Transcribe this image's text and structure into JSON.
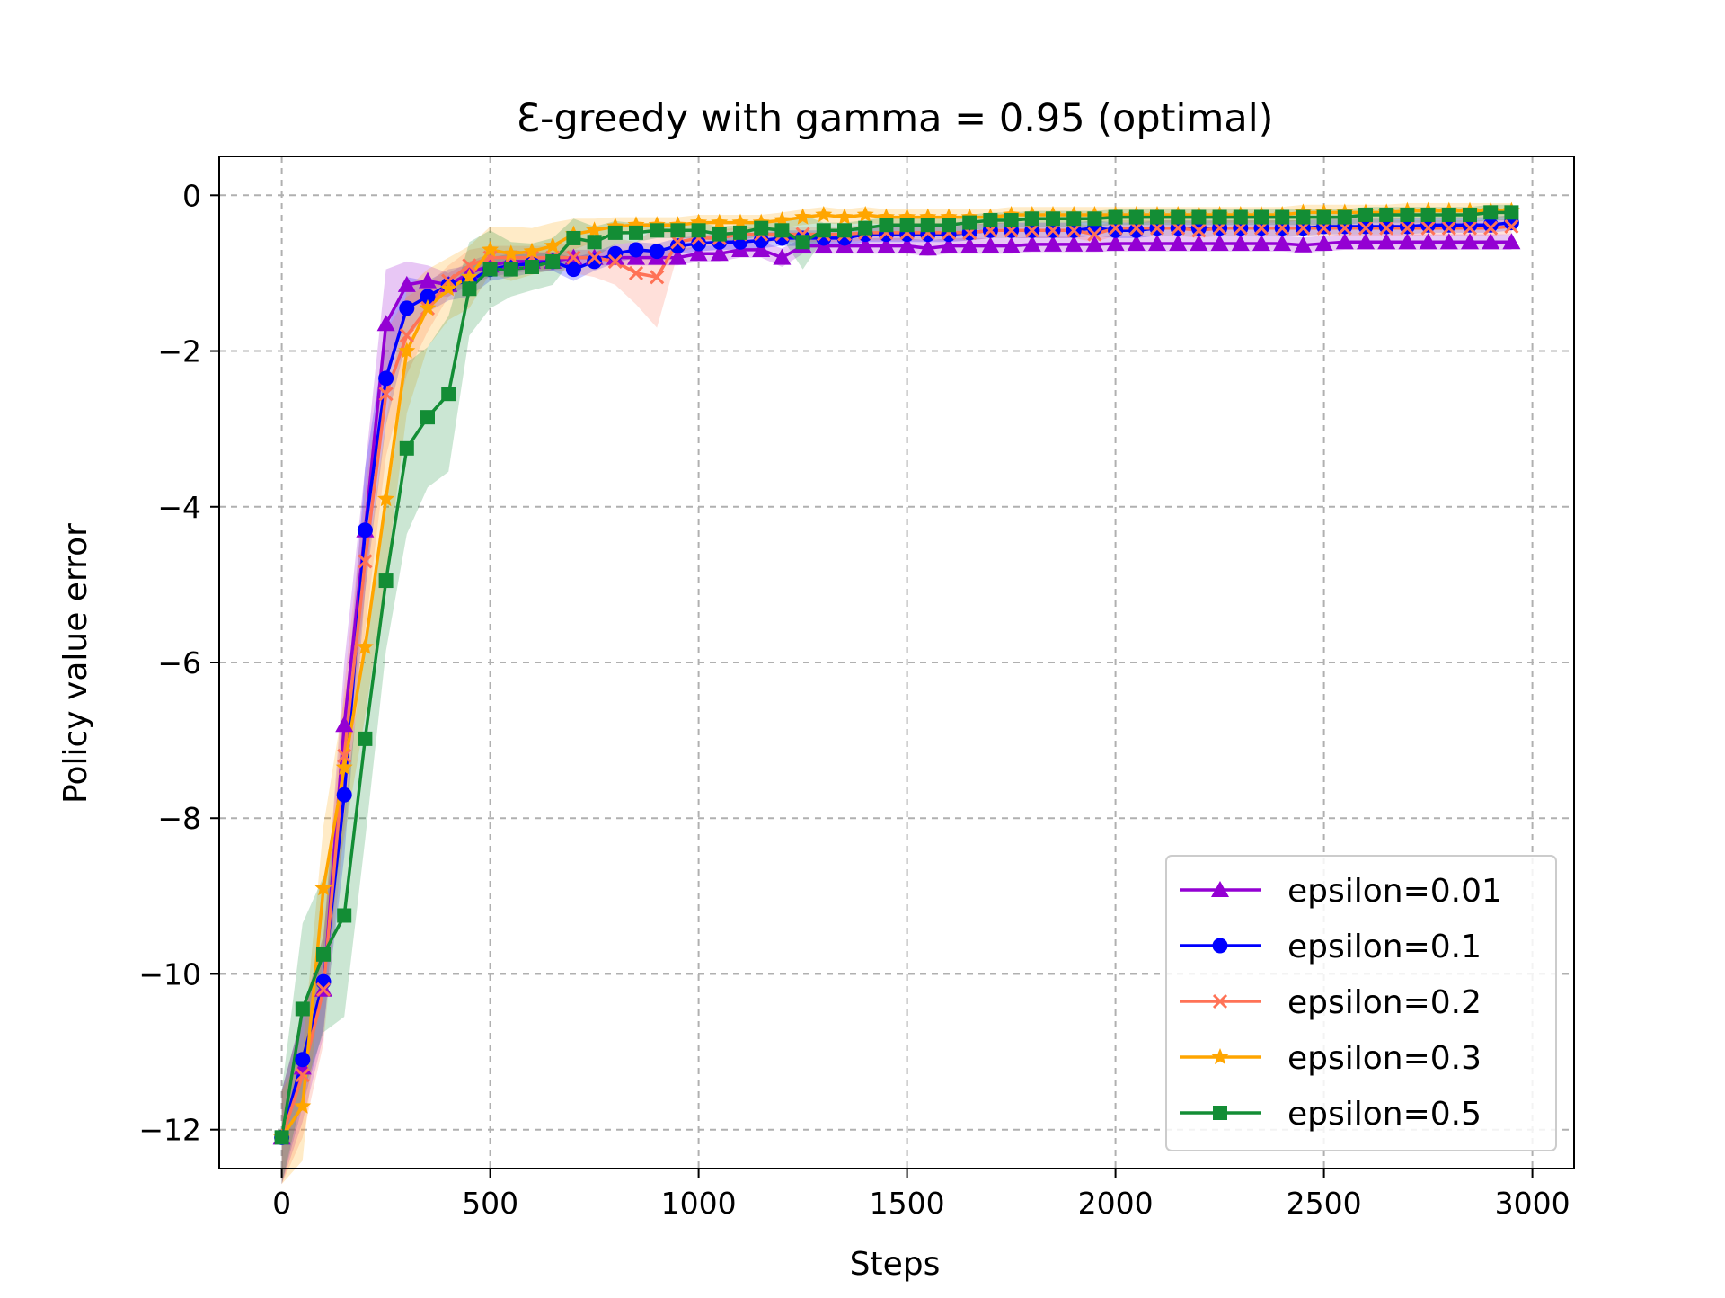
{
  "chart_data": {
    "type": "line",
    "title": "Ɛ-greedy with gamma = 0.95 (optimal)",
    "xlabel": "Steps",
    "ylabel": "Policy value error",
    "xlim": [
      -150,
      3100
    ],
    "ylim": [
      -12.5,
      0.5
    ],
    "xticks": [
      0,
      500,
      1000,
      1500,
      2000,
      2500,
      3000
    ],
    "xtick_labels": [
      "0",
      "500",
      "1000",
      "1500",
      "2000",
      "2500",
      "3000"
    ],
    "yticks": [
      0,
      -2,
      -4,
      -6,
      -8,
      -10,
      -12
    ],
    "ytick_labels": [
      "0",
      "−2",
      "−4",
      "−6",
      "−8",
      "−10",
      "−12"
    ],
    "grid": true,
    "legend_position": "lower-right",
    "shaded_band": "variability band around each series",
    "x": [
      0,
      50,
      100,
      150,
      200,
      250,
      300,
      350,
      400,
      450,
      500,
      550,
      600,
      650,
      700,
      750,
      800,
      850,
      900,
      950,
      1000,
      1050,
      1100,
      1150,
      1200,
      1250,
      1300,
      1350,
      1400,
      1450,
      1500,
      1550,
      1600,
      1650,
      1700,
      1750,
      1800,
      1850,
      1900,
      1950,
      2000,
      2050,
      2100,
      2150,
      2200,
      2250,
      2300,
      2350,
      2400,
      2450,
      2500,
      2550,
      2600,
      2650,
      2700,
      2750,
      2800,
      2850,
      2900,
      2950
    ],
    "series": [
      {
        "name": "epsilon=0.01",
        "color": "#9400D3",
        "marker": "triangle",
        "values": [
          -12.1,
          -11.2,
          -10.2,
          -6.8,
          -4.3,
          -1.65,
          -1.15,
          -1.1,
          -1.15,
          -1.0,
          -0.9,
          -0.85,
          -0.85,
          -0.85,
          -0.8,
          -0.8,
          -0.8,
          -0.8,
          -0.8,
          -0.8,
          -0.75,
          -0.75,
          -0.7,
          -0.7,
          -0.8,
          -0.65,
          -0.65,
          -0.65,
          -0.65,
          -0.65,
          -0.65,
          -0.68,
          -0.65,
          -0.65,
          -0.65,
          -0.65,
          -0.63,
          -0.63,
          -0.63,
          -0.63,
          -0.62,
          -0.62,
          -0.62,
          -0.62,
          -0.62,
          -0.62,
          -0.62,
          -0.62,
          -0.62,
          -0.64,
          -0.62,
          -0.6,
          -0.6,
          -0.6,
          -0.6,
          -0.6,
          -0.6,
          -0.6,
          -0.6,
          -0.6
        ],
        "band": [
          0.6,
          0.7,
          0.6,
          0.8,
          0.8,
          0.7,
          0.3,
          0.2,
          0.15,
          0.15,
          0.15,
          0.15,
          0.12,
          0.12,
          0.1,
          0.1,
          0.1,
          0.1,
          0.1,
          0.1,
          0.1,
          0.1,
          0.1,
          0.1,
          0.12,
          0.1,
          0.1,
          0.1,
          0.1,
          0.1,
          0.1,
          0.1,
          0.1,
          0.1,
          0.1,
          0.1,
          0.1,
          0.1,
          0.1,
          0.1,
          0.1,
          0.1,
          0.1,
          0.1,
          0.1,
          0.1,
          0.1,
          0.1,
          0.1,
          0.1,
          0.1,
          0.1,
          0.1,
          0.1,
          0.1,
          0.1,
          0.1,
          0.1,
          0.1,
          0.1
        ]
      },
      {
        "name": "epsilon=0.1",
        "color": "#0000FF",
        "marker": "circle",
        "values": [
          -12.1,
          -11.1,
          -10.1,
          -7.7,
          -4.3,
          -2.35,
          -1.45,
          -1.3,
          -1.15,
          -1.1,
          -0.95,
          -0.9,
          -0.88,
          -0.85,
          -0.95,
          -0.85,
          -0.75,
          -0.7,
          -0.72,
          -0.65,
          -0.62,
          -0.6,
          -0.6,
          -0.58,
          -0.55,
          -0.55,
          -0.55,
          -0.55,
          -0.5,
          -0.5,
          -0.5,
          -0.5,
          -0.5,
          -0.48,
          -0.45,
          -0.45,
          -0.45,
          -0.45,
          -0.45,
          -0.42,
          -0.45,
          -0.45,
          -0.42,
          -0.42,
          -0.42,
          -0.42,
          -0.42,
          -0.42,
          -0.42,
          -0.42,
          -0.4,
          -0.4,
          -0.4,
          -0.4,
          -0.4,
          -0.38,
          -0.38,
          -0.38,
          -0.38,
          -0.35
        ],
        "band": [
          0.6,
          0.6,
          0.6,
          0.8,
          0.8,
          0.6,
          0.4,
          0.2,
          0.2,
          0.2,
          0.15,
          0.15,
          0.12,
          0.12,
          0.15,
          0.12,
          0.12,
          0.1,
          0.1,
          0.1,
          0.1,
          0.1,
          0.1,
          0.1,
          0.1,
          0.1,
          0.1,
          0.1,
          0.1,
          0.1,
          0.1,
          0.1,
          0.1,
          0.1,
          0.1,
          0.1,
          0.1,
          0.1,
          0.1,
          0.1,
          0.1,
          0.1,
          0.1,
          0.1,
          0.1,
          0.1,
          0.1,
          0.1,
          0.1,
          0.1,
          0.1,
          0.1,
          0.1,
          0.1,
          0.1,
          0.1,
          0.1,
          0.1,
          0.1,
          0.1
        ]
      },
      {
        "name": "epsilon=0.2",
        "color": "#FF7256",
        "marker": "x",
        "values": [
          -12.1,
          -11.3,
          -10.2,
          -7.2,
          -4.7,
          -2.55,
          -1.8,
          -1.45,
          -1.1,
          -0.9,
          -0.8,
          -0.8,
          -0.8,
          -0.8,
          -0.8,
          -0.8,
          -0.85,
          -1.0,
          -1.05,
          -0.6,
          -0.55,
          -0.55,
          -0.5,
          -0.5,
          -0.5,
          -0.5,
          -0.5,
          -0.5,
          -0.48,
          -0.48,
          -0.48,
          -0.48,
          -0.48,
          -0.48,
          -0.45,
          -0.45,
          -0.45,
          -0.45,
          -0.45,
          -0.5,
          -0.42,
          -0.42,
          -0.42,
          -0.42,
          -0.45,
          -0.42,
          -0.42,
          -0.42,
          -0.42,
          -0.42,
          -0.42,
          -0.42,
          -0.42,
          -0.42,
          -0.42,
          -0.42,
          -0.42,
          -0.42,
          -0.42,
          -0.4
        ],
        "band": [
          0.6,
          0.8,
          0.7,
          0.9,
          0.9,
          0.8,
          0.5,
          0.3,
          0.2,
          0.2,
          0.15,
          0.15,
          0.15,
          0.15,
          0.2,
          0.25,
          0.3,
          0.4,
          0.65,
          0.15,
          0.1,
          0.1,
          0.1,
          0.1,
          0.1,
          0.1,
          0.1,
          0.1,
          0.1,
          0.1,
          0.1,
          0.1,
          0.1,
          0.1,
          0.1,
          0.1,
          0.1,
          0.1,
          0.1,
          0.1,
          0.1,
          0.1,
          0.1,
          0.1,
          0.1,
          0.1,
          0.1,
          0.1,
          0.1,
          0.1,
          0.1,
          0.1,
          0.1,
          0.1,
          0.1,
          0.1,
          0.1,
          0.1,
          0.1,
          0.1
        ]
      },
      {
        "name": "epsilon=0.3",
        "color": "#FFA500",
        "marker": "star",
        "values": [
          -12.1,
          -11.7,
          -8.9,
          -7.35,
          -5.8,
          -3.9,
          -2.0,
          -1.45,
          -1.2,
          -1.05,
          -0.7,
          -0.75,
          -0.72,
          -0.65,
          -0.5,
          -0.45,
          -0.4,
          -0.38,
          -0.38,
          -0.38,
          -0.35,
          -0.35,
          -0.35,
          -0.35,
          -0.32,
          -0.28,
          -0.25,
          -0.28,
          -0.25,
          -0.28,
          -0.28,
          -0.28,
          -0.28,
          -0.28,
          -0.28,
          -0.25,
          -0.25,
          -0.25,
          -0.25,
          -0.25,
          -0.25,
          -0.25,
          -0.25,
          -0.25,
          -0.25,
          -0.25,
          -0.25,
          -0.25,
          -0.25,
          -0.22,
          -0.22,
          -0.22,
          -0.22,
          -0.22,
          -0.2,
          -0.2,
          -0.2,
          -0.2,
          -0.2,
          -0.2
        ],
        "band": [
          0.6,
          0.7,
          0.8,
          0.9,
          0.9,
          1.0,
          0.8,
          0.5,
          0.4,
          0.4,
          0.3,
          0.35,
          0.3,
          0.3,
          0.2,
          0.15,
          0.12,
          0.1,
          0.1,
          0.1,
          0.1,
          0.1,
          0.1,
          0.1,
          0.1,
          0.1,
          0.1,
          0.1,
          0.1,
          0.1,
          0.1,
          0.1,
          0.1,
          0.1,
          0.1,
          0.1,
          0.1,
          0.1,
          0.1,
          0.1,
          0.1,
          0.1,
          0.1,
          0.1,
          0.1,
          0.1,
          0.1,
          0.1,
          0.1,
          0.1,
          0.1,
          0.1,
          0.1,
          0.1,
          0.1,
          0.1,
          0.1,
          0.1,
          0.1,
          0.1
        ]
      },
      {
        "name": "epsilon=0.5",
        "color": "#138D35",
        "marker": "square",
        "values": [
          -12.1,
          -10.45,
          -9.75,
          -9.25,
          -6.98,
          -4.95,
          -3.25,
          -2.85,
          -2.55,
          -1.2,
          -0.95,
          -0.95,
          -0.92,
          -0.85,
          -0.55,
          -0.6,
          -0.48,
          -0.48,
          -0.45,
          -0.45,
          -0.45,
          -0.5,
          -0.48,
          -0.42,
          -0.45,
          -0.6,
          -0.45,
          -0.45,
          -0.42,
          -0.38,
          -0.38,
          -0.38,
          -0.38,
          -0.35,
          -0.32,
          -0.32,
          -0.3,
          -0.3,
          -0.3,
          -0.3,
          -0.28,
          -0.28,
          -0.28,
          -0.28,
          -0.28,
          -0.28,
          -0.28,
          -0.28,
          -0.28,
          -0.28,
          -0.28,
          -0.28,
          -0.25,
          -0.25,
          -0.25,
          -0.25,
          -0.25,
          -0.25,
          -0.22,
          -0.22
        ],
        "band": [
          0.6,
          1.1,
          1.0,
          1.3,
          1.3,
          0.9,
          1.1,
          0.9,
          1.0,
          0.6,
          0.5,
          0.35,
          0.3,
          0.3,
          0.25,
          0.2,
          0.15,
          0.12,
          0.1,
          0.1,
          0.1,
          0.1,
          0.1,
          0.1,
          0.1,
          0.35,
          0.1,
          0.1,
          0.1,
          0.1,
          0.1,
          0.1,
          0.1,
          0.1,
          0.1,
          0.1,
          0.1,
          0.1,
          0.1,
          0.1,
          0.1,
          0.1,
          0.1,
          0.1,
          0.1,
          0.1,
          0.1,
          0.1,
          0.1,
          0.1,
          0.1,
          0.1,
          0.1,
          0.1,
          0.1,
          0.1,
          0.1,
          0.1,
          0.1,
          0.1
        ]
      }
    ]
  }
}
